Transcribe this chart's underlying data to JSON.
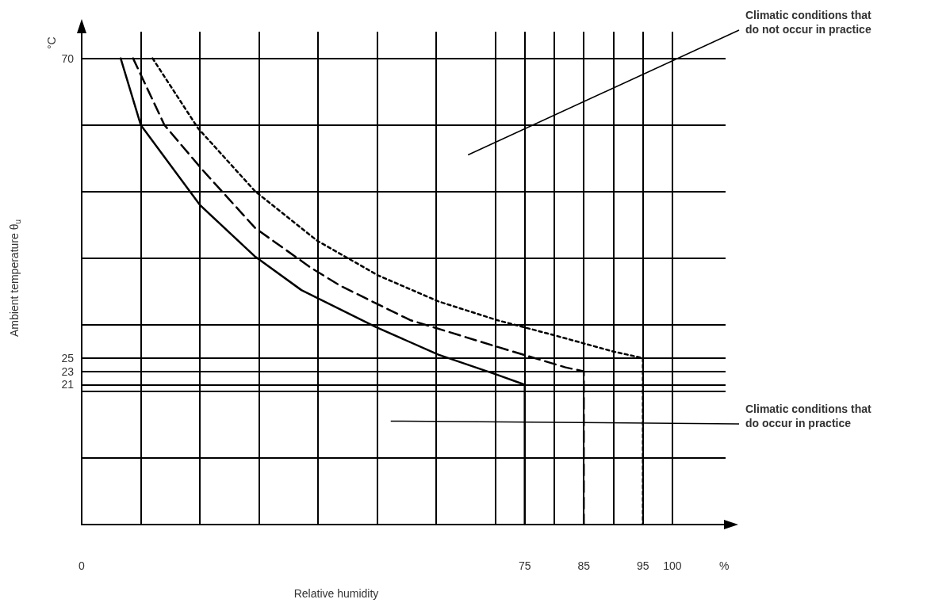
{
  "chart_data": {
    "type": "line",
    "xlabel": "Relative humidity",
    "ylabel": "Ambient temperature θ$_{u}$",
    "xlim": [
      0,
      109
    ],
    "ylim": [
      0,
      74
    ],
    "xticks": [
      0,
      {
        "value": 10,
        "label": null
      },
      {
        "value": 20,
        "label": null
      },
      {
        "value": 30,
        "label": null
      },
      {
        "value": 40,
        "label": null
      },
      {
        "value": 50,
        "label": null
      },
      {
        "value": 60,
        "label": null
      },
      {
        "value": 70,
        "label": null
      },
      75,
      {
        "value": 80,
        "label": null
      },
      85,
      {
        "value": 90,
        "label": null
      },
      95,
      100
    ],
    "yticks": [
      {
        "value": 0,
        "label": null
      },
      {
        "value": 10,
        "label": null
      },
      {
        "value": 20,
        "label": null
      },
      21,
      23,
      25,
      {
        "value": 30,
        "label": null
      },
      {
        "value": 40,
        "label": null
      },
      {
        "value": 50,
        "label": null
      },
      {
        "value": 60,
        "label": null
      },
      70
    ],
    "grid": true,
    "marker": "none",
    "series": [
      {
        "color": "#000000",
        "line_style": "solid",
        "x": [
          6.6,
          10,
          20,
          29.4,
          37.2,
          49.7,
          60.4,
          70.3,
          75,
          75
        ],
        "values": [
          70,
          60,
          48,
          40.2,
          35.2,
          29.7,
          25.5,
          22.5,
          21,
          0
        ]
      },
      {
        "color": "#000000",
        "line_style": "dashed",
        "x": [
          8.7,
          14,
          20.4,
          29.4,
          38.9,
          43.9,
          55.6,
          70.3,
          81.9,
          85,
          85
        ],
        "values": [
          70,
          60,
          53.3,
          44.5,
          38.5,
          35.8,
          30.7,
          26.7,
          23.6,
          23,
          0
        ]
      },
      {
        "color": "#000000",
        "line_style": "dotted",
        "x": [
          12,
          19.7,
          29.4,
          39.9,
          50.2,
          60.4,
          70.3,
          80.1,
          89.9,
          95,
          95
        ],
        "values": [
          70,
          59.5,
          50,
          42.6,
          37.4,
          33.5,
          30.7,
          28.4,
          26,
          25,
          0
        ]
      }
    ],
    "annotations": [
      "°C",
      "%",
      "Climatic conditions that do not occur in practice",
      "Climatic conditions that do occur in practice"
    ]
  }
}
